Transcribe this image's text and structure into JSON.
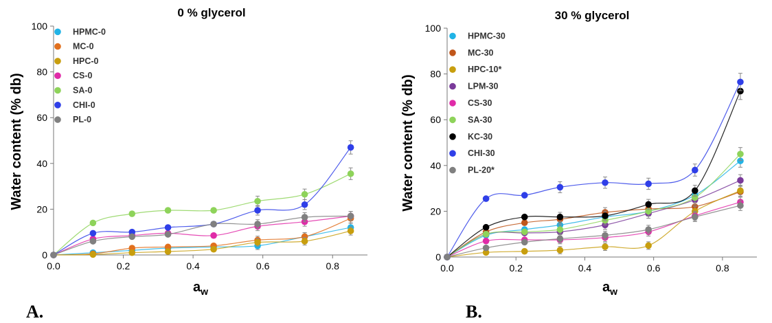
{
  "chart_data": [
    {
      "type": "scatter",
      "title": "0 % glycerol",
      "xlabel": "a",
      "xlabel_sub": "w",
      "ylabel": "Water content (% db)",
      "xlim": [
        0,
        0.9
      ],
      "ylim": [
        0,
        100
      ],
      "xticks": [
        "0.0",
        "0.2",
        "0.4",
        "0.6",
        "0.8"
      ],
      "yticks": [
        "0",
        "20",
        "40",
        "60",
        "80",
        "100"
      ],
      "x": [
        0,
        0.113,
        0.225,
        0.328,
        0.459,
        0.585,
        0.72,
        0.852
      ],
      "series": [
        {
          "name": "HPMC-0",
          "color": "#21b3e6",
          "values": [
            0,
            1.0,
            2.0,
            3.0,
            3.5,
            4.0,
            8.0,
            12.0
          ]
        },
        {
          "name": "MC-0",
          "color": "#e1701e",
          "values": [
            0,
            0.5,
            3.0,
            3.5,
            4.0,
            6.5,
            8.0,
            16.0
          ]
        },
        {
          "name": "HPC-0",
          "color": "#c89e0e",
          "values": [
            0,
            0.2,
            1.0,
            1.5,
            2.5,
            5.5,
            6.0,
            10.5
          ]
        },
        {
          "name": "CS-0",
          "color": "#e02ba8",
          "values": [
            0,
            7.0,
            8.5,
            9.5,
            8.5,
            12.5,
            14.5,
            17.0
          ]
        },
        {
          "name": "SA-0",
          "color": "#8ed35a",
          "values": [
            0,
            14.0,
            18.0,
            19.5,
            19.5,
            23.5,
            26.5,
            35.5
          ]
        },
        {
          "name": "CHI-0",
          "color": "#2f3fe8",
          "values": [
            0,
            9.5,
            10.0,
            12.0,
            13.5,
            19.5,
            22.0,
            47.0
          ]
        },
        {
          "name": "PL-0",
          "color": "#808080",
          "values": [
            0,
            6.0,
            8.0,
            9.0,
            13.5,
            13.5,
            16.5,
            17.0
          ]
        }
      ]
    },
    {
      "type": "scatter",
      "title": "30 % glycerol",
      "xlabel": "a",
      "xlabel_sub": "w",
      "ylabel": "Water content (% db)",
      "xlim": [
        0,
        0.9
      ],
      "ylim": [
        0,
        100
      ],
      "xticks": [
        "0.0",
        "0.2",
        "0.4",
        "0.6",
        "0.8"
      ],
      "yticks": [
        "0",
        "20",
        "40",
        "60",
        "80",
        "100"
      ],
      "x": [
        0,
        0.113,
        0.225,
        0.328,
        0.459,
        0.585,
        0.72,
        0.852
      ],
      "series": [
        {
          "name": "HPMC-30",
          "color": "#21b3e6",
          "values": [
            0,
            9.5,
            12.0,
            14.0,
            17.5,
            20.0,
            27.0,
            42.0
          ]
        },
        {
          "name": "MC-30",
          "color": "#c0561a",
          "values": [
            0,
            11.0,
            15.0,
            16.5,
            19.5,
            21.0,
            22.0,
            28.5
          ]
        },
        {
          "name": "HPC-10*",
          "color": "#c89e0e",
          "values": [
            0,
            2.0,
            2.5,
            3.0,
            4.5,
            5.0,
            20.0,
            29.0
          ]
        },
        {
          "name": "LPM-30",
          "color": "#7a3a9a",
          "values": [
            0,
            10.0,
            10.5,
            11.0,
            14.0,
            19.0,
            25.0,
            33.5
          ]
        },
        {
          "name": "CS-30",
          "color": "#e02ba8",
          "values": [
            0,
            7.0,
            7.5,
            7.5,
            8.5,
            11.0,
            18.0,
            24.0
          ]
        },
        {
          "name": "SA-30",
          "color": "#8ed35a",
          "values": [
            0,
            10.0,
            11.0,
            12.0,
            16.0,
            20.0,
            26.0,
            45.0
          ]
        },
        {
          "name": "KC-30",
          "color": "#000000",
          "values": [
            0,
            13.0,
            17.5,
            17.5,
            18.0,
            23.0,
            29.0,
            72.5
          ]
        },
        {
          "name": "CHI-30",
          "color": "#2f3fe8",
          "values": [
            0,
            25.5,
            27.0,
            30.5,
            32.5,
            32.0,
            38.0,
            76.5
          ]
        },
        {
          "name": "PL-20*",
          "color": "#808080",
          "values": [
            0,
            4.0,
            6.5,
            8.0,
            9.5,
            12.0,
            17.5,
            22.5
          ]
        }
      ]
    }
  ],
  "panel_labels": [
    "A.",
    "B."
  ]
}
